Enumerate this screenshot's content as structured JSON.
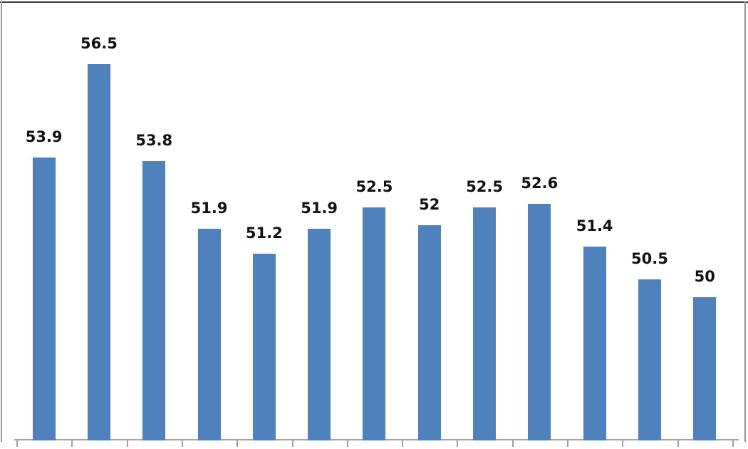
{
  "chart_data": {
    "type": "bar",
    "title": "",
    "xlabel": "",
    "ylabel": "",
    "categories": [
      "",
      "",
      "",
      "",
      "",
      "",
      "",
      "",
      "",
      "",
      "",
      "",
      ""
    ],
    "values": [
      53.9,
      56.5,
      53.8,
      51.9,
      51.2,
      51.9,
      52.5,
      52,
      52.5,
      52.6,
      51.4,
      50.5,
      50
    ],
    "labels": [
      "53.9",
      "56.5",
      "53.8",
      "51.9",
      "51.2",
      "51.9",
      "52.5",
      "52",
      "52.5",
      "52.6",
      "51.4",
      "50.5",
      "50"
    ],
    "ylim": [
      46,
      58
    ],
    "grid": false,
    "legend": false,
    "data_labels_shown": true,
    "x_tick_count": 14,
    "colors": {
      "bar": "#4f81bd",
      "axis": "#a3a3a3",
      "label": "#111111",
      "border_top": "#3c3c3c",
      "border_side": "#969696",
      "background": "#ffffff"
    }
  }
}
